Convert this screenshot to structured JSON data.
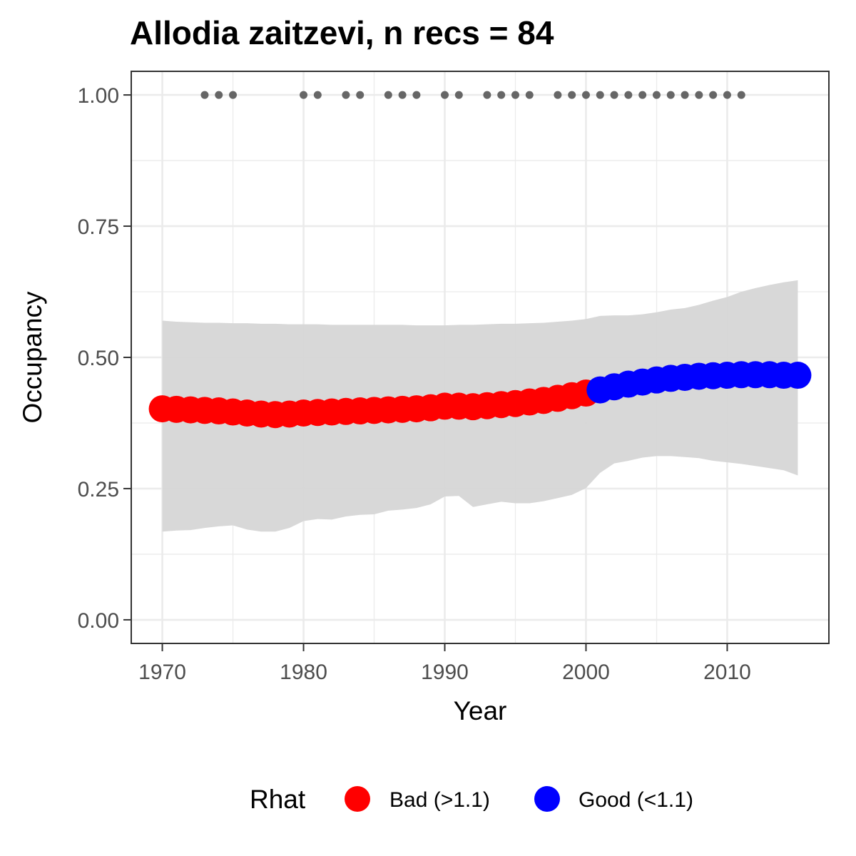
{
  "chart_data": {
    "type": "line",
    "title": "Allodia zaitzevi, n recs = 84",
    "xlabel": "Year",
    "ylabel": "Occupancy",
    "xlim": [
      1967.8,
      2017.2
    ],
    "ylim": [
      -0.045,
      1.045
    ],
    "x_ticks": [
      1970,
      1980,
      1990,
      2000,
      2010
    ],
    "x_tick_labels": [
      "1970",
      "1980",
      "1990",
      "2000",
      "2010"
    ],
    "y_ticks": [
      0,
      0.25,
      0.5,
      0.75,
      1.0
    ],
    "y_tick_labels": [
      "0.00",
      "0.25",
      "0.50",
      "0.75",
      "1.00"
    ],
    "grid": true,
    "legend": {
      "title": "Rhat",
      "placement": "bottom",
      "entries": [
        {
          "label": "Bad (>1.1)",
          "color": "#ff0000"
        },
        {
          "label": "Good (<1.1)",
          "color": "#0000ff"
        }
      ]
    },
    "colors": {
      "bad": "#ff0000",
      "good": "#0000ff",
      "ribbon": "#d6d6d6",
      "records": "#666666",
      "grid": "#ebebeb",
      "panel_border": "#333333"
    },
    "x": [
      1970,
      1971,
      1972,
      1973,
      1974,
      1975,
      1976,
      1977,
      1978,
      1979,
      1980,
      1981,
      1982,
      1983,
      1984,
      1985,
      1986,
      1987,
      1988,
      1989,
      1990,
      1991,
      1992,
      1993,
      1994,
      1995,
      1996,
      1997,
      1998,
      1999,
      2000,
      2001,
      2002,
      2003,
      2004,
      2005,
      2006,
      2007,
      2008,
      2009,
      2010,
      2011,
      2012,
      2013,
      2014,
      2015
    ],
    "occupancy": [
      0.402,
      0.401,
      0.4,
      0.399,
      0.398,
      0.396,
      0.394,
      0.392,
      0.391,
      0.392,
      0.394,
      0.395,
      0.396,
      0.397,
      0.398,
      0.399,
      0.4,
      0.401,
      0.402,
      0.404,
      0.407,
      0.407,
      0.406,
      0.408,
      0.41,
      0.412,
      0.415,
      0.418,
      0.422,
      0.427,
      0.432,
      0.438,
      0.444,
      0.449,
      0.453,
      0.457,
      0.46,
      0.462,
      0.464,
      0.465,
      0.466,
      0.467,
      0.467,
      0.467,
      0.466,
      0.466
    ],
    "lower": [
      0.168,
      0.17,
      0.171,
      0.175,
      0.178,
      0.18,
      0.172,
      0.168,
      0.168,
      0.175,
      0.188,
      0.192,
      0.191,
      0.197,
      0.2,
      0.201,
      0.208,
      0.21,
      0.213,
      0.22,
      0.235,
      0.236,
      0.215,
      0.22,
      0.225,
      0.222,
      0.222,
      0.226,
      0.232,
      0.238,
      0.251,
      0.28,
      0.298,
      0.303,
      0.309,
      0.312,
      0.312,
      0.31,
      0.308,
      0.303,
      0.3,
      0.297,
      0.293,
      0.289,
      0.285,
      0.275
    ],
    "upper": [
      0.57,
      0.568,
      0.567,
      0.566,
      0.566,
      0.565,
      0.565,
      0.564,
      0.564,
      0.563,
      0.563,
      0.563,
      0.562,
      0.562,
      0.562,
      0.562,
      0.562,
      0.562,
      0.561,
      0.561,
      0.561,
      0.562,
      0.562,
      0.563,
      0.564,
      0.564,
      0.565,
      0.566,
      0.568,
      0.57,
      0.573,
      0.579,
      0.58,
      0.58,
      0.582,
      0.586,
      0.591,
      0.594,
      0.6,
      0.608,
      0.615,
      0.625,
      0.632,
      0.638,
      0.643,
      0.647
    ],
    "rhat": [
      "Bad (>1.1)",
      "Bad (>1.1)",
      "Bad (>1.1)",
      "Bad (>1.1)",
      "Bad (>1.1)",
      "Bad (>1.1)",
      "Bad (>1.1)",
      "Bad (>1.1)",
      "Bad (>1.1)",
      "Bad (>1.1)",
      "Bad (>1.1)",
      "Bad (>1.1)",
      "Bad (>1.1)",
      "Bad (>1.1)",
      "Bad (>1.1)",
      "Bad (>1.1)",
      "Bad (>1.1)",
      "Bad (>1.1)",
      "Bad (>1.1)",
      "Bad (>1.1)",
      "Bad (>1.1)",
      "Bad (>1.1)",
      "Bad (>1.1)",
      "Bad (>1.1)",
      "Bad (>1.1)",
      "Bad (>1.1)",
      "Bad (>1.1)",
      "Bad (>1.1)",
      "Bad (>1.1)",
      "Bad (>1.1)",
      "Bad (>1.1)",
      "Good (<1.1)",
      "Good (<1.1)",
      "Good (<1.1)",
      "Good (<1.1)",
      "Good (<1.1)",
      "Good (<1.1)",
      "Good (<1.1)",
      "Good (<1.1)",
      "Good (<1.1)",
      "Good (<1.1)",
      "Good (<1.1)",
      "Good (<1.1)",
      "Good (<1.1)",
      "Good (<1.1)",
      "Good (<1.1)"
    ],
    "record_years": [
      1973,
      1974,
      1975,
      1980,
      1981,
      1983,
      1984,
      1986,
      1987,
      1988,
      1990,
      1991,
      1993,
      1994,
      1995,
      1996,
      1998,
      1999,
      2000,
      2001,
      2002,
      2003,
      2004,
      2005,
      2006,
      2007,
      2008,
      2009,
      2010,
      2011
    ],
    "record_value": 1.0
  }
}
